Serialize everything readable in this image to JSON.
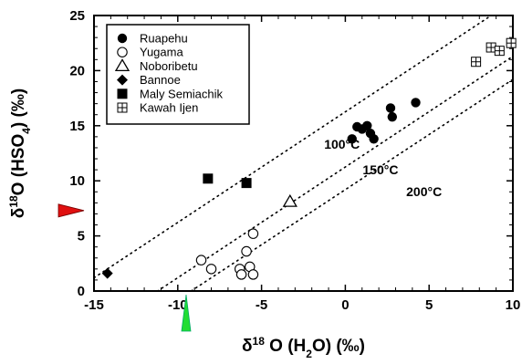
{
  "chart_data": {
    "type": "scatter",
    "x_axis": {
      "label_parts": [
        "δ",
        "18",
        " O  (H",
        "2",
        "O)  (‰)"
      ],
      "range": [
        -15,
        10
      ],
      "ticks": [
        -15,
        -10,
        -5,
        0,
        5,
        10
      ],
      "tick_labels": [
        "-15",
        "-10",
        "-5",
        "0",
        "5",
        "10"
      ]
    },
    "y_axis": {
      "label_parts": [
        "δ",
        "18",
        "O  (HSO",
        "4",
        ")  (‰)"
      ],
      "range": [
        0,
        25
      ],
      "ticks": [
        0,
        5,
        10,
        15,
        20,
        25
      ],
      "tick_labels": [
        "0",
        "5",
        "10",
        "15",
        "20",
        "25"
      ]
    },
    "grid": false,
    "legend_position": "top-left",
    "series": [
      {
        "name": "Ruapehu",
        "marker": "filled-circle",
        "points": [
          [
            0.4,
            13.8
          ],
          [
            0.7,
            14.9
          ],
          [
            1.0,
            14.7
          ],
          [
            1.3,
            15.0
          ],
          [
            1.5,
            14.3
          ],
          [
            1.7,
            13.8
          ],
          [
            2.7,
            16.6
          ],
          [
            2.8,
            15.8
          ],
          [
            4.2,
            17.1
          ]
        ]
      },
      {
        "name": "Yugama",
        "marker": "open-circle",
        "points": [
          [
            -8.6,
            2.8
          ],
          [
            -8.0,
            2.0
          ],
          [
            -6.3,
            2.0
          ],
          [
            -6.2,
            1.5
          ],
          [
            -5.9,
            3.6
          ],
          [
            -5.7,
            2.2
          ],
          [
            -5.5,
            5.2
          ],
          [
            -5.5,
            1.5
          ]
        ]
      },
      {
        "name": "Noboribetu",
        "marker": "open-triangle",
        "points": [
          [
            -3.3,
            8.1
          ]
        ]
      },
      {
        "name": "Bannoe",
        "marker": "filled-diamond",
        "points": [
          [
            -14.2,
            1.6
          ]
        ]
      },
      {
        "name": "Maly Semiachik",
        "marker": "filled-square",
        "points": [
          [
            -8.2,
            10.2
          ],
          [
            -5.9,
            9.8
          ]
        ]
      },
      {
        "name": "Kawah Ijen",
        "marker": "crossed-square",
        "points": [
          [
            7.8,
            20.8
          ],
          [
            8.7,
            22.1
          ],
          [
            9.2,
            21.8
          ],
          [
            9.9,
            22.5
          ]
        ]
      }
    ],
    "isotherms": [
      {
        "label": "100°C",
        "points": [
          [
            -15,
            1.2
          ],
          [
            10,
            26.3
          ]
        ]
      },
      {
        "label": "150°C",
        "points": [
          [
            -11.5,
            -0.3
          ],
          [
            10,
            21.3
          ]
        ]
      },
      {
        "label": "200°C",
        "points": [
          [
            -9.2,
            0
          ],
          [
            10,
            19.2
          ]
        ]
      }
    ],
    "arrow_markers": [
      {
        "axis": "y",
        "value": 7.3,
        "color": "#e01010"
      },
      {
        "axis": "x",
        "value": -9.5,
        "color": "#22dd33"
      }
    ]
  }
}
